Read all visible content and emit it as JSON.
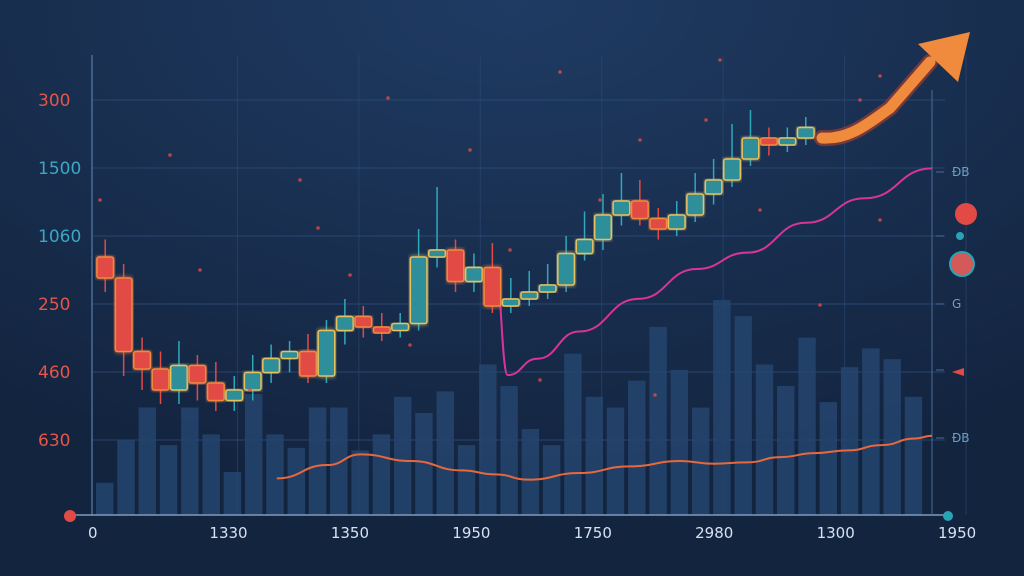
{
  "chart_data": {
    "type": "candlestick",
    "title": "",
    "xlabel": "",
    "ylabel": "",
    "left_axis_ticks": [
      {
        "label": "300",
        "color": "#e4554a"
      },
      {
        "label": "1500",
        "color": "#3aa7c4"
      },
      {
        "label": "1060",
        "color": "#3aa7c4"
      },
      {
        "label": "250",
        "color": "#e4554a"
      },
      {
        "label": "460",
        "color": "#e4554a"
      },
      {
        "label": "630",
        "color": "#e4554a"
      }
    ],
    "bottom_axis_ticks": [
      "0",
      "1330",
      "1350",
      "1950",
      "1750",
      "2980",
      "1300",
      "1950"
    ],
    "right_axis_ticks": [
      "ĐB",
      "",
      "G",
      "",
      "ĐB"
    ],
    "y_range": [
      0,
      100
    ],
    "candles": [
      {
        "o": 58,
        "c": 52,
        "h": 63,
        "l": 48
      },
      {
        "o": 52,
        "c": 31,
        "h": 56,
        "l": 24
      },
      {
        "o": 31,
        "c": 26,
        "h": 35,
        "l": 20
      },
      {
        "o": 26,
        "c": 20,
        "h": 31,
        "l": 16
      },
      {
        "o": 20,
        "c": 27,
        "h": 34,
        "l": 16
      },
      {
        "o": 27,
        "c": 22,
        "h": 30,
        "l": 17
      },
      {
        "o": 22,
        "c": 17,
        "h": 28,
        "l": 14
      },
      {
        "o": 17,
        "c": 20,
        "h": 24,
        "l": 14
      },
      {
        "o": 20,
        "c": 25,
        "h": 30,
        "l": 17
      },
      {
        "o": 25,
        "c": 29,
        "h": 33,
        "l": 22
      },
      {
        "o": 29,
        "c": 31,
        "h": 34,
        "l": 25
      },
      {
        "o": 31,
        "c": 24,
        "h": 36,
        "l": 22
      },
      {
        "o": 24,
        "c": 37,
        "h": 40,
        "l": 22
      },
      {
        "o": 37,
        "c": 41,
        "h": 46,
        "l": 33
      },
      {
        "o": 41,
        "c": 38,
        "h": 44,
        "l": 35
      },
      {
        "o": 38,
        "c": 37,
        "h": 42,
        "l": 34
      },
      {
        "o": 37,
        "c": 39,
        "h": 42,
        "l": 35
      },
      {
        "o": 39,
        "c": 58,
        "h": 66,
        "l": 37
      },
      {
        "o": 58,
        "c": 60,
        "h": 78,
        "l": 55
      },
      {
        "o": 60,
        "c": 51,
        "h": 63,
        "l": 48
      },
      {
        "o": 51,
        "c": 55,
        "h": 59,
        "l": 48
      },
      {
        "o": 55,
        "c": 44,
        "h": 62,
        "l": 42
      },
      {
        "o": 44,
        "c": 46,
        "h": 52,
        "l": 42
      },
      {
        "o": 46,
        "c": 48,
        "h": 54,
        "l": 44
      },
      {
        "o": 48,
        "c": 50,
        "h": 56,
        "l": 46
      },
      {
        "o": 50,
        "c": 59,
        "h": 64,
        "l": 48
      },
      {
        "o": 59,
        "c": 63,
        "h": 71,
        "l": 57
      },
      {
        "o": 63,
        "c": 70,
        "h": 76,
        "l": 60
      },
      {
        "o": 70,
        "c": 74,
        "h": 82,
        "l": 67
      },
      {
        "o": 74,
        "c": 69,
        "h": 80,
        "l": 67
      },
      {
        "o": 69,
        "c": 66,
        "h": 72,
        "l": 63
      },
      {
        "o": 66,
        "c": 70,
        "h": 74,
        "l": 64
      },
      {
        "o": 70,
        "c": 76,
        "h": 82,
        "l": 68
      },
      {
        "o": 76,
        "c": 80,
        "h": 86,
        "l": 73
      },
      {
        "o": 80,
        "c": 86,
        "h": 96,
        "l": 78
      },
      {
        "o": 86,
        "c": 92,
        "h": 100,
        "l": 84
      },
      {
        "o": 92,
        "c": 90,
        "h": 95,
        "l": 87
      },
      {
        "o": 90,
        "c": 92,
        "h": 95,
        "l": 88
      },
      {
        "o": 92,
        "c": 95,
        "h": 98,
        "l": 90
      }
    ],
    "volume": [
      12,
      28,
      40,
      26,
      40,
      30,
      16,
      45,
      30,
      25,
      40,
      40,
      24,
      30,
      44,
      38,
      46,
      26,
      56,
      48,
      32,
      26,
      60,
      44,
      40,
      50,
      70,
      54,
      40,
      80,
      74,
      56,
      48,
      66,
      42,
      55,
      62,
      58,
      44
    ],
    "magenta_line": [
      [
        48,
        49
      ],
      [
        49.5,
        11
      ],
      [
        53,
        17
      ],
      [
        58,
        27
      ],
      [
        65,
        39
      ],
      [
        72,
        50
      ],
      [
        78,
        56
      ],
      [
        85,
        67
      ],
      [
        92,
        76
      ],
      [
        100,
        87
      ]
    ],
    "orange_line": [
      [
        22,
        5
      ],
      [
        28,
        15
      ],
      [
        32,
        23
      ],
      [
        38,
        18
      ],
      [
        44,
        11
      ],
      [
        48,
        8
      ],
      [
        52,
        4
      ],
      [
        58,
        9
      ],
      [
        64,
        14
      ],
      [
        70,
        18
      ],
      [
        74,
        16
      ],
      [
        78,
        17
      ],
      [
        82,
        21
      ],
      [
        86,
        24
      ],
      [
        90,
        26
      ],
      [
        94,
        30
      ],
      [
        98,
        35
      ],
      [
        100,
        37
      ]
    ],
    "colors": {
      "bull": "#2f8f9a",
      "bear": "#e24b45",
      "bear_edge": "#f08a3c",
      "wick_bull": "#2fa9b9",
      "wick_bear": "#e24b45",
      "magenta": "#d8349a",
      "orange": "#e8683c",
      "arrow": "#f08a3c",
      "volume": "#24456f",
      "grid": "#2d4d78",
      "axis": "#4a6d98"
    },
    "legend_markers": [
      "#e24b45",
      "#2aa3b5",
      "#d45a5a"
    ]
  }
}
